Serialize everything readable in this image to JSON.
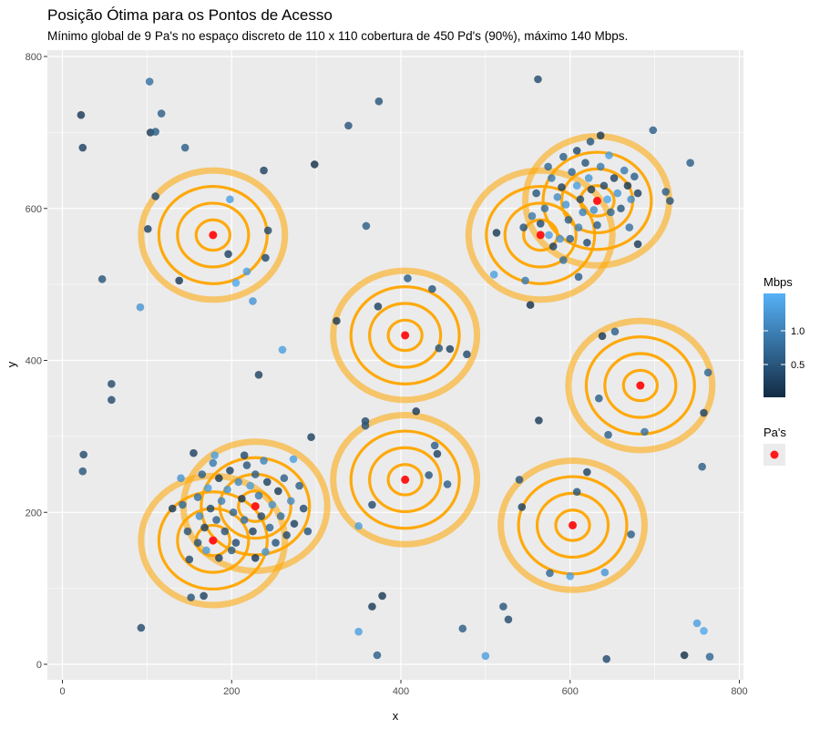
{
  "chart_data": {
    "type": "scatter",
    "title": "Posição Ótima para os Pontos de Acesso",
    "subtitle": "Mínimo global de 9 Pa's no espaço discreto de 110 x 110 cobertura de 450 Pd's (90%), máximo 140 Mbps.",
    "xlabel": "x",
    "ylabel": "y",
    "xlim": [
      -20,
      810
    ],
    "ylim": [
      -20,
      810
    ],
    "x_ticks": [
      0,
      200,
      400,
      600,
      800
    ],
    "y_ticks": [
      0,
      200,
      400,
      600,
      800
    ],
    "grid": true,
    "background": "#ebebeb",
    "access_points": {
      "name": "Pa's",
      "color": "#ff1a1a",
      "points": [
        {
          "x": 178,
          "y": 565
        },
        {
          "x": 405,
          "y": 433
        },
        {
          "x": 565,
          "y": 565
        },
        {
          "x": 632,
          "y": 610
        },
        {
          "x": 683,
          "y": 367
        },
        {
          "x": 405,
          "y": 243
        },
        {
          "x": 178,
          "y": 163
        },
        {
          "x": 228,
          "y": 208
        },
        {
          "x": 603,
          "y": 183
        }
      ]
    },
    "coverage_rings": {
      "color": "#ffa500",
      "radii": [
        20,
        42,
        64,
        85
      ],
      "outer_alpha": 0.55
    },
    "devices": {
      "name": "Mbps",
      "color_low": "#132b43",
      "color_high": "#56b1f7",
      "legend_ticks": [
        0.5,
        1.0
      ],
      "range": [
        0.05,
        1.5
      ],
      "points": [
        {
          "x": 22,
          "y": 723,
          "v": 0.2
        },
        {
          "x": 24,
          "y": 680,
          "v": 0.3
        },
        {
          "x": 103,
          "y": 767,
          "v": 0.8
        },
        {
          "x": 104,
          "y": 700,
          "v": 0.2
        },
        {
          "x": 110,
          "y": 701,
          "v": 0.6
        },
        {
          "x": 117,
          "y": 725,
          "v": 0.6
        },
        {
          "x": 145,
          "y": 680,
          "v": 0.6
        },
        {
          "x": 110,
          "y": 616,
          "v": 0.4
        },
        {
          "x": 101,
          "y": 573,
          "v": 0.3
        },
        {
          "x": 47,
          "y": 507,
          "v": 0.5
        },
        {
          "x": 92,
          "y": 470,
          "v": 1.2
        },
        {
          "x": 138,
          "y": 505,
          "v": 0.2
        },
        {
          "x": 198,
          "y": 612,
          "v": 1.3
        },
        {
          "x": 196,
          "y": 540,
          "v": 0.3
        },
        {
          "x": 205,
          "y": 502,
          "v": 1.4
        },
        {
          "x": 218,
          "y": 517,
          "v": 1.3
        },
        {
          "x": 225,
          "y": 478,
          "v": 1.2
        },
        {
          "x": 240,
          "y": 535,
          "v": 0.4
        },
        {
          "x": 243,
          "y": 571,
          "v": 0.4
        },
        {
          "x": 238,
          "y": 650,
          "v": 0.3
        },
        {
          "x": 298,
          "y": 658,
          "v": 0.1
        },
        {
          "x": 338,
          "y": 709,
          "v": 0.5
        },
        {
          "x": 374,
          "y": 741,
          "v": 0.5
        },
        {
          "x": 359,
          "y": 577,
          "v": 0.6
        },
        {
          "x": 58,
          "y": 369,
          "v": 0.4
        },
        {
          "x": 58,
          "y": 348,
          "v": 0.4
        },
        {
          "x": 232,
          "y": 381,
          "v": 0.3
        },
        {
          "x": 260,
          "y": 414,
          "v": 1.3
        },
        {
          "x": 324,
          "y": 452,
          "v": 0.2
        },
        {
          "x": 373,
          "y": 471,
          "v": 0.3
        },
        {
          "x": 408,
          "y": 508,
          "v": 0.6
        },
        {
          "x": 437,
          "y": 494,
          "v": 0.5
        },
        {
          "x": 445,
          "y": 416,
          "v": 0.5
        },
        {
          "x": 458,
          "y": 415,
          "v": 0.3
        },
        {
          "x": 478,
          "y": 408,
          "v": 0.4
        },
        {
          "x": 358,
          "y": 320,
          "v": 0.4
        },
        {
          "x": 358,
          "y": 314,
          "v": 0.5
        },
        {
          "x": 294,
          "y": 299,
          "v": 0.3
        },
        {
          "x": 418,
          "y": 333,
          "v": 0.2
        },
        {
          "x": 440,
          "y": 288,
          "v": 0.6
        },
        {
          "x": 443,
          "y": 277,
          "v": 0.3
        },
        {
          "x": 433,
          "y": 249,
          "v": 0.5
        },
        {
          "x": 455,
          "y": 237,
          "v": 0.6
        },
        {
          "x": 366,
          "y": 210,
          "v": 0.4
        },
        {
          "x": 350,
          "y": 182,
          "v": 1.3
        },
        {
          "x": 25,
          "y": 276,
          "v": 0.4
        },
        {
          "x": 24,
          "y": 254,
          "v": 0.5
        },
        {
          "x": 93,
          "y": 48,
          "v": 0.4
        },
        {
          "x": 152,
          "y": 88,
          "v": 0.5
        },
        {
          "x": 167,
          "y": 90,
          "v": 0.3
        },
        {
          "x": 273,
          "y": 270,
          "v": 1.3
        },
        {
          "x": 366,
          "y": 76,
          "v": 0.2
        },
        {
          "x": 378,
          "y": 90,
          "v": 0.2
        },
        {
          "x": 350,
          "y": 43,
          "v": 1.3
        },
        {
          "x": 372,
          "y": 12,
          "v": 0.6
        },
        {
          "x": 473,
          "y": 47,
          "v": 0.6
        },
        {
          "x": 500,
          "y": 11,
          "v": 1.3
        },
        {
          "x": 521,
          "y": 76,
          "v": 0.5
        },
        {
          "x": 527,
          "y": 59,
          "v": 0.4
        },
        {
          "x": 540,
          "y": 243,
          "v": 0.5
        },
        {
          "x": 543,
          "y": 207,
          "v": 0.3
        },
        {
          "x": 563,
          "y": 321,
          "v": 0.2
        },
        {
          "x": 576,
          "y": 120,
          "v": 0.7
        },
        {
          "x": 600,
          "y": 116,
          "v": 1.3
        },
        {
          "x": 608,
          "y": 227,
          "v": 0.5
        },
        {
          "x": 620,
          "y": 253,
          "v": 0.3
        },
        {
          "x": 641,
          "y": 121,
          "v": 1.2
        },
        {
          "x": 643,
          "y": 7,
          "v": 0.4
        },
        {
          "x": 672,
          "y": 171,
          "v": 0.6
        },
        {
          "x": 735,
          "y": 12,
          "v": 0.1
        },
        {
          "x": 750,
          "y": 54,
          "v": 1.3
        },
        {
          "x": 758,
          "y": 44,
          "v": 1.4
        },
        {
          "x": 765,
          "y": 10,
          "v": 0.7
        },
        {
          "x": 756,
          "y": 260,
          "v": 0.6
        },
        {
          "x": 758,
          "y": 331,
          "v": 0.3
        },
        {
          "x": 763,
          "y": 384,
          "v": 0.7
        },
        {
          "x": 638,
          "y": 432,
          "v": 0.2
        },
        {
          "x": 653,
          "y": 438,
          "v": 0.6
        },
        {
          "x": 634,
          "y": 350,
          "v": 0.6
        },
        {
          "x": 645,
          "y": 302,
          "v": 0.6
        },
        {
          "x": 688,
          "y": 306,
          "v": 0.8
        },
        {
          "x": 562,
          "y": 770,
          "v": 0.4
        },
        {
          "x": 636,
          "y": 696,
          "v": 0.2
        },
        {
          "x": 698,
          "y": 703,
          "v": 0.6
        },
        {
          "x": 742,
          "y": 660,
          "v": 0.6
        },
        {
          "x": 713,
          "y": 622,
          "v": 0.6
        },
        {
          "x": 718,
          "y": 610,
          "v": 0.5
        },
        {
          "x": 680,
          "y": 553,
          "v": 0.2
        },
        {
          "x": 670,
          "y": 575,
          "v": 0.8
        },
        {
          "x": 610,
          "y": 510,
          "v": 0.6
        },
        {
          "x": 513,
          "y": 568,
          "v": 0.2
        },
        {
          "x": 510,
          "y": 513,
          "v": 1.3
        },
        {
          "x": 547,
          "y": 505,
          "v": 0.9
        },
        {
          "x": 553,
          "y": 473,
          "v": 0.1
        },
        {
          "x": 592,
          "y": 532,
          "v": 0.8
        },
        {
          "x": 560,
          "y": 620,
          "v": 0.5
        },
        {
          "x": 570,
          "y": 600,
          "v": 0.8
        },
        {
          "x": 578,
          "y": 640,
          "v": 0.9
        },
        {
          "x": 585,
          "y": 615,
          "v": 1.1
        },
        {
          "x": 590,
          "y": 628,
          "v": 0.3
        },
        {
          "x": 595,
          "y": 605,
          "v": 1.2
        },
        {
          "x": 598,
          "y": 585,
          "v": 0.6
        },
        {
          "x": 602,
          "y": 648,
          "v": 0.7
        },
        {
          "x": 608,
          "y": 630,
          "v": 1.3
        },
        {
          "x": 612,
          "y": 612,
          "v": 0.4
        },
        {
          "x": 615,
          "y": 595,
          "v": 1.0
        },
        {
          "x": 618,
          "y": 660,
          "v": 0.5
        },
        {
          "x": 622,
          "y": 640,
          "v": 1.2
        },
        {
          "x": 625,
          "y": 625,
          "v": 0.3
        },
        {
          "x": 628,
          "y": 598,
          "v": 1.1
        },
        {
          "x": 632,
          "y": 578,
          "v": 0.6
        },
        {
          "x": 636,
          "y": 655,
          "v": 0.9
        },
        {
          "x": 640,
          "y": 630,
          "v": 0.4
        },
        {
          "x": 644,
          "y": 612,
          "v": 1.4
        },
        {
          "x": 648,
          "y": 595,
          "v": 0.7
        },
        {
          "x": 652,
          "y": 640,
          "v": 0.3
        },
        {
          "x": 656,
          "y": 620,
          "v": 1.2
        },
        {
          "x": 660,
          "y": 600,
          "v": 0.5
        },
        {
          "x": 664,
          "y": 650,
          "v": 0.9
        },
        {
          "x": 668,
          "y": 630,
          "v": 0.2
        },
        {
          "x": 672,
          "y": 612,
          "v": 1.1
        },
        {
          "x": 676,
          "y": 642,
          "v": 0.6
        },
        {
          "x": 680,
          "y": 620,
          "v": 0.3
        },
        {
          "x": 592,
          "y": 668,
          "v": 0.6
        },
        {
          "x": 608,
          "y": 676,
          "v": 0.4
        },
        {
          "x": 624,
          "y": 688,
          "v": 0.5
        },
        {
          "x": 646,
          "y": 670,
          "v": 1.3
        },
        {
          "x": 574,
          "y": 655,
          "v": 0.7
        },
        {
          "x": 565,
          "y": 580,
          "v": 0.4
        },
        {
          "x": 575,
          "y": 565,
          "v": 1.3
        },
        {
          "x": 580,
          "y": 550,
          "v": 0.3
        },
        {
          "x": 588,
          "y": 560,
          "v": 1.2
        },
        {
          "x": 555,
          "y": 590,
          "v": 0.9
        },
        {
          "x": 545,
          "y": 575,
          "v": 0.5
        },
        {
          "x": 600,
          "y": 560,
          "v": 0.6
        },
        {
          "x": 610,
          "y": 575,
          "v": 1.0
        },
        {
          "x": 620,
          "y": 555,
          "v": 0.4
        },
        {
          "x": 130,
          "y": 205,
          "v": 0.2
        },
        {
          "x": 140,
          "y": 245,
          "v": 1.2
        },
        {
          "x": 148,
          "y": 175,
          "v": 0.5
        },
        {
          "x": 150,
          "y": 138,
          "v": 0.4
        },
        {
          "x": 155,
          "y": 278,
          "v": 0.3
        },
        {
          "x": 160,
          "y": 220,
          "v": 0.8
        },
        {
          "x": 162,
          "y": 195,
          "v": 1.1
        },
        {
          "x": 165,
          "y": 250,
          "v": 0.6
        },
        {
          "x": 168,
          "y": 180,
          "v": 0.3
        },
        {
          "x": 172,
          "y": 232,
          "v": 1.3
        },
        {
          "x": 175,
          "y": 205,
          "v": 0.4
        },
        {
          "x": 178,
          "y": 265,
          "v": 0.9
        },
        {
          "x": 182,
          "y": 190,
          "v": 0.6
        },
        {
          "x": 185,
          "y": 245,
          "v": 0.2
        },
        {
          "x": 188,
          "y": 215,
          "v": 1.0
        },
        {
          "x": 192,
          "y": 175,
          "v": 0.5
        },
        {
          "x": 195,
          "y": 230,
          "v": 1.2
        },
        {
          "x": 198,
          "y": 255,
          "v": 0.3
        },
        {
          "x": 202,
          "y": 200,
          "v": 0.7
        },
        {
          "x": 205,
          "y": 160,
          "v": 0.4
        },
        {
          "x": 208,
          "y": 240,
          "v": 1.1
        },
        {
          "x": 212,
          "y": 218,
          "v": 0.2
        },
        {
          "x": 215,
          "y": 190,
          "v": 0.8
        },
        {
          "x": 218,
          "y": 262,
          "v": 0.5
        },
        {
          "x": 222,
          "y": 235,
          "v": 1.3
        },
        {
          "x": 225,
          "y": 175,
          "v": 0.3
        },
        {
          "x": 228,
          "y": 250,
          "v": 0.6
        },
        {
          "x": 232,
          "y": 222,
          "v": 0.9
        },
        {
          "x": 235,
          "y": 195,
          "v": 0.4
        },
        {
          "x": 238,
          "y": 268,
          "v": 1.0
        },
        {
          "x": 242,
          "y": 240,
          "v": 0.3
        },
        {
          "x": 245,
          "y": 180,
          "v": 0.7
        },
        {
          "x": 248,
          "y": 210,
          "v": 1.2
        },
        {
          "x": 252,
          "y": 160,
          "v": 0.5
        },
        {
          "x": 255,
          "y": 228,
          "v": 0.2
        },
        {
          "x": 258,
          "y": 195,
          "v": 0.8
        },
        {
          "x": 262,
          "y": 245,
          "v": 0.6
        },
        {
          "x": 265,
          "y": 170,
          "v": 0.4
        },
        {
          "x": 270,
          "y": 215,
          "v": 1.1
        },
        {
          "x": 274,
          "y": 185,
          "v": 0.3
        },
        {
          "x": 280,
          "y": 235,
          "v": 0.6
        },
        {
          "x": 285,
          "y": 205,
          "v": 0.4
        },
        {
          "x": 290,
          "y": 175,
          "v": 0.5
        },
        {
          "x": 240,
          "y": 148,
          "v": 1.2
        },
        {
          "x": 228,
          "y": 140,
          "v": 0.2
        },
        {
          "x": 200,
          "y": 150,
          "v": 0.6
        },
        {
          "x": 185,
          "y": 140,
          "v": 0.3
        },
        {
          "x": 170,
          "y": 150,
          "v": 1.3
        },
        {
          "x": 160,
          "y": 160,
          "v": 0.5
        },
        {
          "x": 142,
          "y": 210,
          "v": 0.7
        },
        {
          "x": 180,
          "y": 275,
          "v": 1.3
        },
        {
          "x": 215,
          "y": 275,
          "v": 0.4
        }
      ]
    }
  },
  "legend": {
    "mbps_title": "Mbps",
    "mbps_ticks": [
      "1.0",
      "0.5"
    ],
    "pas_title": "Pa's"
  }
}
